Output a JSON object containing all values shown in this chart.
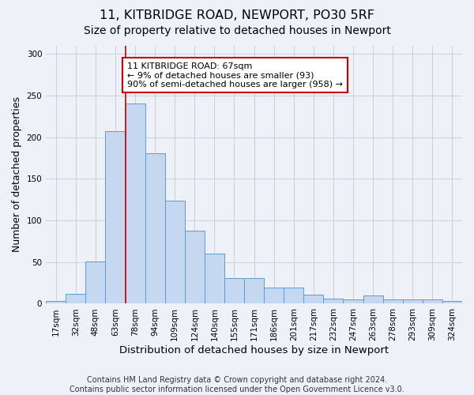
{
  "title1": "11, KITBRIDGE ROAD, NEWPORT, PO30 5RF",
  "title2": "Size of property relative to detached houses in Newport",
  "xlabel": "Distribution of detached houses by size in Newport",
  "ylabel": "Number of detached properties",
  "categories": [
    "17sqm",
    "32sqm",
    "48sqm",
    "63sqm",
    "78sqm",
    "94sqm",
    "109sqm",
    "124sqm",
    "140sqm",
    "155sqm",
    "171sqm",
    "186sqm",
    "201sqm",
    "217sqm",
    "232sqm",
    "247sqm",
    "263sqm",
    "278sqm",
    "293sqm",
    "309sqm",
    "324sqm"
  ],
  "values": [
    3,
    12,
    51,
    207,
    240,
    181,
    124,
    88,
    60,
    31,
    31,
    19,
    19,
    11,
    6,
    5,
    10,
    5,
    5,
    5,
    3
  ],
  "bar_color": "#c5d8f0",
  "bar_edge_color": "#5b9bd5",
  "grid_color": "#c8d0dc",
  "vline_x": 3.5,
  "vline_color": "#cc0000",
  "annotation_text": "11 KITBRIDGE ROAD: 67sqm\n← 9% of detached houses are smaller (93)\n90% of semi-detached houses are larger (958) →",
  "annotation_box_color": "white",
  "annotation_box_edge_color": "#cc0000",
  "footer": "Contains HM Land Registry data © Crown copyright and database right 2024.\nContains public sector information licensed under the Open Government Licence v3.0.",
  "ylim": [
    0,
    310
  ],
  "background_color": "#eef2f8",
  "title1_fontsize": 11.5,
  "title2_fontsize": 10,
  "xlabel_fontsize": 9.5,
  "ylabel_fontsize": 9,
  "tick_fontsize": 7.5,
  "footer_fontsize": 7,
  "annot_fontsize": 8
}
